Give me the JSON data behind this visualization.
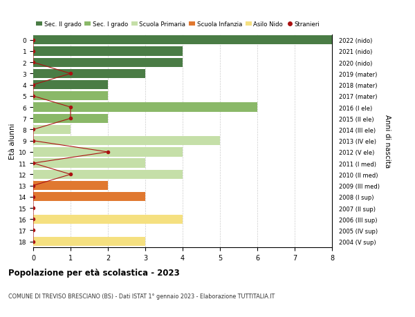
{
  "ages": [
    18,
    17,
    16,
    15,
    14,
    13,
    12,
    11,
    10,
    9,
    8,
    7,
    6,
    5,
    4,
    3,
    2,
    1,
    0
  ],
  "right_labels": [
    "2004 (V sup)",
    "2005 (IV sup)",
    "2006 (III sup)",
    "2007 (II sup)",
    "2008 (I sup)",
    "2009 (III med)",
    "2010 (II med)",
    "2011 (I med)",
    "2012 (V ele)",
    "2013 (IV ele)",
    "2014 (III ele)",
    "2015 (II ele)",
    "2016 (I ele)",
    "2017 (mater)",
    "2018 (mater)",
    "2019 (mater)",
    "2020 (nido)",
    "2021 (nido)",
    "2022 (nido)"
  ],
  "bar_values": [
    8,
    4,
    4,
    3,
    2,
    2,
    6,
    2,
    1,
    5,
    4,
    3,
    4,
    2,
    3,
    0,
    4,
    0,
    3
  ],
  "bar_colors": [
    "#4a7c45",
    "#4a7c45",
    "#4a7c45",
    "#4a7c45",
    "#4a7c45",
    "#8ab868",
    "#8ab868",
    "#8ab868",
    "#c5dfa8",
    "#c5dfa8",
    "#c5dfa8",
    "#c5dfa8",
    "#c5dfa8",
    "#e07830",
    "#e07830",
    "#e07830",
    "#f5e080",
    "#f5e080",
    "#f5e080"
  ],
  "stranieri_values": [
    0,
    0,
    0,
    1,
    0,
    0,
    1,
    1,
    0,
    0,
    2,
    0,
    1,
    0,
    0,
    0,
    0,
    0,
    0
  ],
  "stranieri_color": "#aa1111",
  "xlim": [
    0,
    8
  ],
  "xlabel_ticks": [
    0,
    1,
    2,
    3,
    4,
    5,
    6,
    7,
    8
  ],
  "ylabel_left": "Età alunni",
  "ylabel_right": "Anni di nascita",
  "title": "Popolazione per età scolastica - 2023",
  "subtitle": "COMUNE DI TREVISO BRESCIANO (BS) - Dati ISTAT 1° gennaio 2023 - Elaborazione TUTTITALIA.IT",
  "legend_labels": [
    "Sec. II grado",
    "Sec. I grado",
    "Scuola Primaria",
    "Scuola Infanzia",
    "Asilo Nido",
    "Stranieri"
  ],
  "legend_colors": [
    "#4a7c45",
    "#8ab868",
    "#c5dfa8",
    "#e07830",
    "#f5e080",
    "#aa1111"
  ],
  "bg_color": "#ffffff",
  "grid_color": "#cccccc",
  "bar_height": 0.82
}
